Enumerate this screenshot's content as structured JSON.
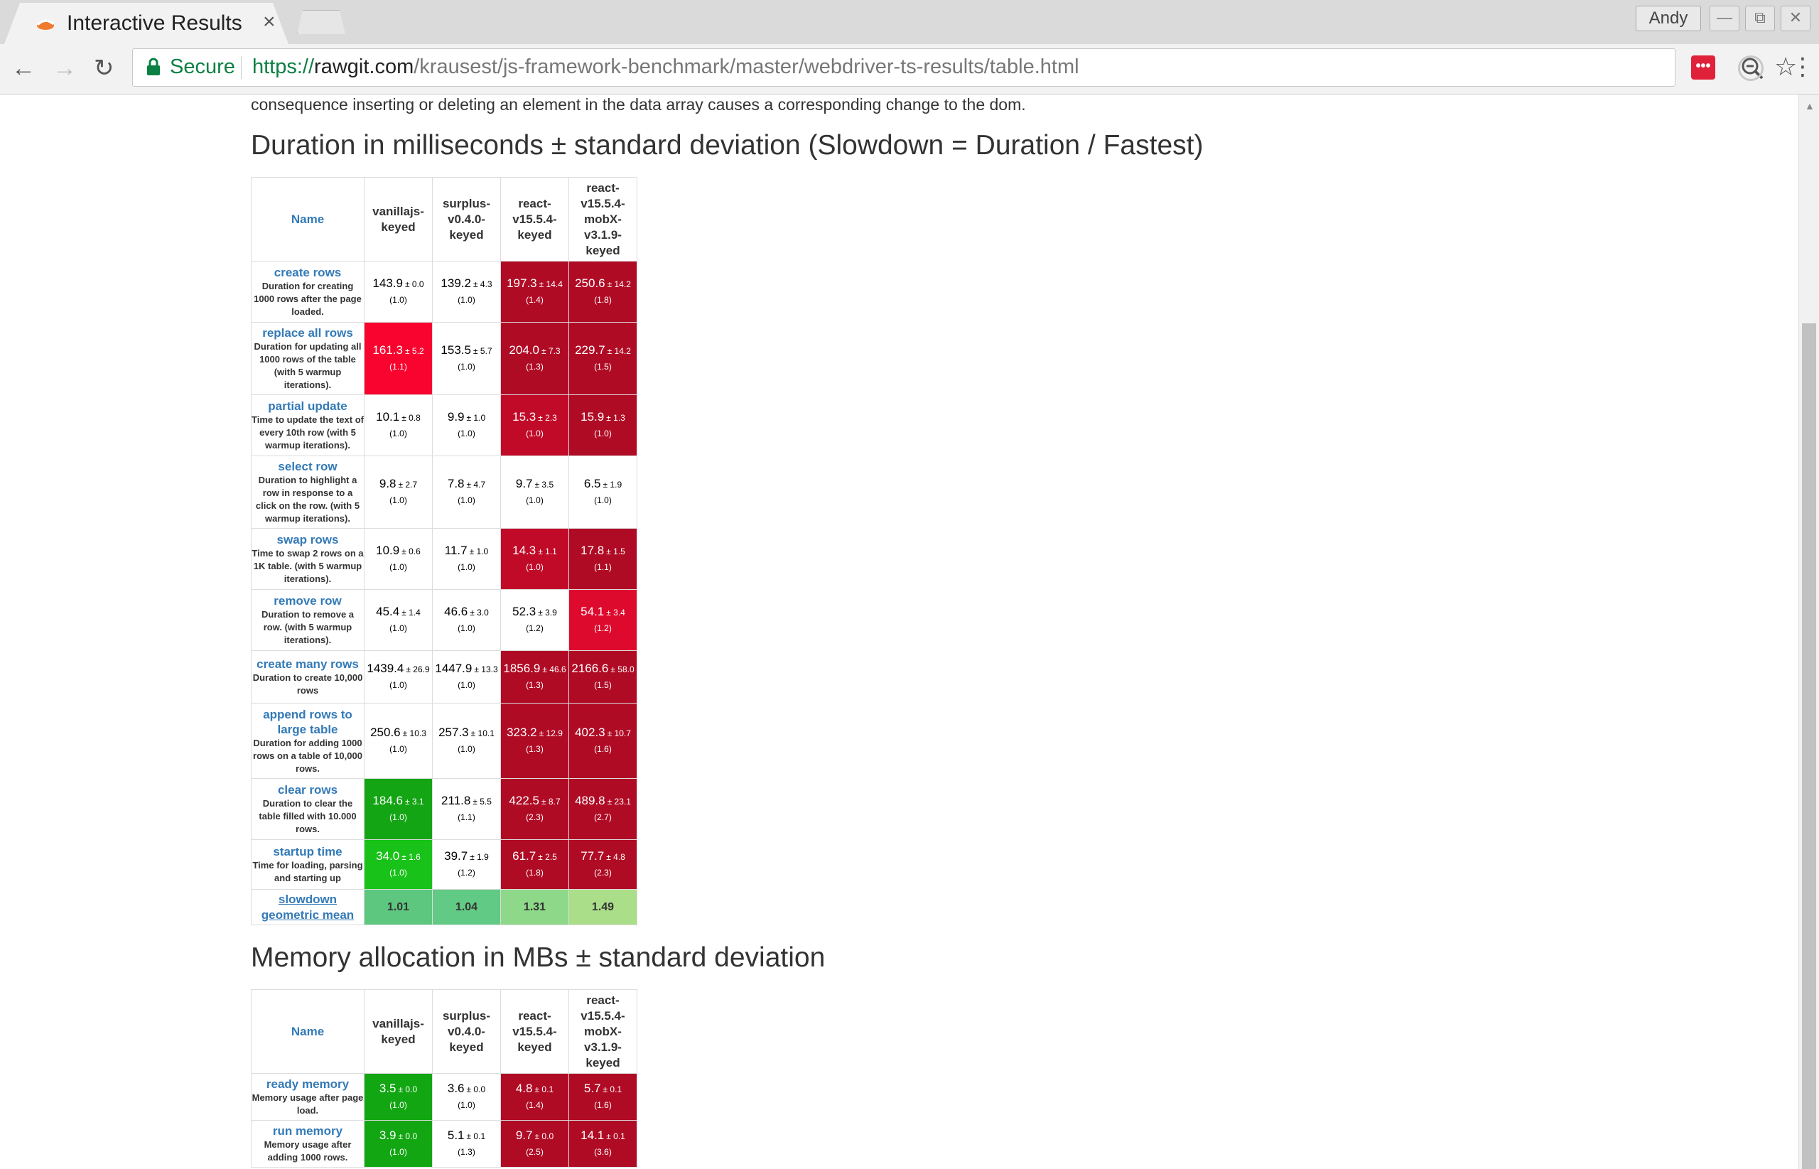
{
  "browser": {
    "tab_title": "Interactive Results",
    "tab_close": "×",
    "profile_name": "Andy",
    "secure_label": "Secure",
    "url_protocol": "https://",
    "url_host": "rawgit.com",
    "url_path": "/krausest/js-framework-benchmark/master/webdriver-ts-results/table.html",
    "icons": [
      "back-icon",
      "forward-icon",
      "reload-icon",
      "lock-icon",
      "zoom-icon",
      "star-icon",
      "extension-icon",
      "menu-icon"
    ]
  },
  "page": {
    "intro_text": "consequence inserting or deleting an element in the data array causes a corresponding change to the dom.",
    "duration_title": "Duration in milliseconds ± standard deviation (Slowdown = Duration / Fastest)",
    "memory_title": "Memory allocation in MBs ± standard deviation"
  },
  "frameworks": [
    "vanillajs-keyed",
    "surplus-v0.4.0-keyed",
    "react-v15.5.4-keyed",
    "react-v15.5.4-mobX-v3.1.9-keyed"
  ],
  "name_header": "Name",
  "duration_rows": [
    {
      "name": "create rows",
      "desc": "Duration for creating 1000 rows after the page loaded.",
      "cells": [
        {
          "mean": "143.9",
          "dev": "± 0.0",
          "factor": "(1.0)",
          "bg": "#ffffff",
          "fg": "#000000"
        },
        {
          "mean": "139.2",
          "dev": "± 4.3",
          "factor": "(1.0)",
          "bg": "#ffffff",
          "fg": "#000000"
        },
        {
          "mean": "197.3",
          "dev": "± 14.4",
          "factor": "(1.4)",
          "bg": "#b00b25",
          "fg": "#ffffff"
        },
        {
          "mean": "250.6",
          "dev": "± 14.2",
          "factor": "(1.8)",
          "bg": "#b00b25",
          "fg": "#ffffff"
        }
      ]
    },
    {
      "name": "replace all rows",
      "desc": "Duration for updating all 1000 rows of the table (with 5 warmup iterations).",
      "cells": [
        {
          "mean": "161.3",
          "dev": "± 5.2",
          "factor": "(1.1)",
          "bg": "#f8042e",
          "fg": "#ffffff"
        },
        {
          "mean": "153.5",
          "dev": "± 5.7",
          "factor": "(1.0)",
          "bg": "#ffffff",
          "fg": "#000000"
        },
        {
          "mean": "204.0",
          "dev": "± 7.3",
          "factor": "(1.3)",
          "bg": "#b00b25",
          "fg": "#ffffff"
        },
        {
          "mean": "229.7",
          "dev": "± 14.2",
          "factor": "(1.5)",
          "bg": "#b00b25",
          "fg": "#ffffff"
        }
      ]
    },
    {
      "name": "partial update",
      "desc": "Time to update the text of every 10th row (with 5 warmup iterations).",
      "cells": [
        {
          "mean": "10.1",
          "dev": "± 0.8",
          "factor": "(1.0)",
          "bg": "#ffffff",
          "fg": "#000000"
        },
        {
          "mean": "9.9",
          "dev": "± 1.0",
          "factor": "(1.0)",
          "bg": "#ffffff",
          "fg": "#000000"
        },
        {
          "mean": "15.3",
          "dev": "± 2.3",
          "factor": "(1.0)",
          "bg": "#c00a28",
          "fg": "#ffffff"
        },
        {
          "mean": "15.9",
          "dev": "± 1.3",
          "factor": "(1.0)",
          "bg": "#b00b25",
          "fg": "#ffffff"
        }
      ]
    },
    {
      "name": "select row",
      "desc": "Duration to highlight a row in response to a click on the row. (with 5 warmup iterations).",
      "cells": [
        {
          "mean": "9.8",
          "dev": "± 2.7",
          "factor": "(1.0)",
          "bg": "#ffffff",
          "fg": "#000000"
        },
        {
          "mean": "7.8",
          "dev": "± 4.7",
          "factor": "(1.0)",
          "bg": "#ffffff",
          "fg": "#000000"
        },
        {
          "mean": "9.7",
          "dev": "± 3.5",
          "factor": "(1.0)",
          "bg": "#ffffff",
          "fg": "#000000"
        },
        {
          "mean": "6.5",
          "dev": "± 1.9",
          "factor": "(1.0)",
          "bg": "#ffffff",
          "fg": "#000000"
        }
      ]
    },
    {
      "name": "swap rows",
      "desc": "Time to swap 2 rows on a 1K table. (with 5 warmup iterations).",
      "cells": [
        {
          "mean": "10.9",
          "dev": "± 0.6",
          "factor": "(1.0)",
          "bg": "#ffffff",
          "fg": "#000000"
        },
        {
          "mean": "11.7",
          "dev": "± 1.0",
          "factor": "(1.0)",
          "bg": "#ffffff",
          "fg": "#000000"
        },
        {
          "mean": "14.3",
          "dev": "± 1.1",
          "factor": "(1.0)",
          "bg": "#c00a28",
          "fg": "#ffffff"
        },
        {
          "mean": "17.8",
          "dev": "± 1.5",
          "factor": "(1.1)",
          "bg": "#b00b25",
          "fg": "#ffffff"
        }
      ]
    },
    {
      "name": "remove row",
      "desc": "Duration to remove a row. (with 5 warmup iterations).",
      "cells": [
        {
          "mean": "45.4",
          "dev": "± 1.4",
          "factor": "(1.0)",
          "bg": "#ffffff",
          "fg": "#000000"
        },
        {
          "mean": "46.6",
          "dev": "± 3.0",
          "factor": "(1.0)",
          "bg": "#ffffff",
          "fg": "#000000"
        },
        {
          "mean": "52.3",
          "dev": "± 3.9",
          "factor": "(1.2)",
          "bg": "#ffffff",
          "fg": "#000000"
        },
        {
          "mean": "54.1",
          "dev": "± 3.4",
          "factor": "(1.2)",
          "bg": "#de0a2e",
          "fg": "#ffffff"
        }
      ]
    },
    {
      "name": "create many rows",
      "desc": "Duration to create 10,000 rows",
      "cells": [
        {
          "mean": "1439.4",
          "dev": "± 26.9",
          "factor": "(1.0)",
          "bg": "#ffffff",
          "fg": "#000000"
        },
        {
          "mean": "1447.9",
          "dev": "± 13.3",
          "factor": "(1.0)",
          "bg": "#ffffff",
          "fg": "#000000"
        },
        {
          "mean": "1856.9",
          "dev": "± 46.6",
          "factor": "(1.3)",
          "bg": "#b00b25",
          "fg": "#ffffff"
        },
        {
          "mean": "2166.6",
          "dev": "± 58.0",
          "factor": "(1.5)",
          "bg": "#b00b25",
          "fg": "#ffffff"
        }
      ]
    },
    {
      "name": "append rows to large table",
      "desc": "Duration for adding 1000 rows on a table of 10,000 rows.",
      "cells": [
        {
          "mean": "250.6",
          "dev": "± 10.3",
          "factor": "(1.0)",
          "bg": "#ffffff",
          "fg": "#000000"
        },
        {
          "mean": "257.3",
          "dev": "± 10.1",
          "factor": "(1.0)",
          "bg": "#ffffff",
          "fg": "#000000"
        },
        {
          "mean": "323.2",
          "dev": "± 12.9",
          "factor": "(1.3)",
          "bg": "#b00b25",
          "fg": "#ffffff"
        },
        {
          "mean": "402.3",
          "dev": "± 10.7",
          "factor": "(1.6)",
          "bg": "#b00b25",
          "fg": "#ffffff"
        }
      ]
    },
    {
      "name": "clear rows",
      "desc": "Duration to clear the table filled with 10.000 rows.",
      "cells": [
        {
          "mean": "184.6",
          "dev": "± 3.1",
          "factor": "(1.0)",
          "bg": "#14a514",
          "fg": "#ffffff"
        },
        {
          "mean": "211.8",
          "dev": "± 5.5",
          "factor": "(1.1)",
          "bg": "#ffffff",
          "fg": "#000000"
        },
        {
          "mean": "422.5",
          "dev": "± 8.7",
          "factor": "(2.3)",
          "bg": "#b00b25",
          "fg": "#ffffff"
        },
        {
          "mean": "489.8",
          "dev": "± 23.1",
          "factor": "(2.7)",
          "bg": "#b00b25",
          "fg": "#ffffff"
        }
      ]
    },
    {
      "name": "startup time",
      "desc": "Time for loading, parsing and starting up",
      "cells": [
        {
          "mean": "34.0",
          "dev": "± 1.6",
          "factor": "(1.0)",
          "bg": "#19c219",
          "fg": "#ffffff"
        },
        {
          "mean": "39.7",
          "dev": "± 1.9",
          "factor": "(1.2)",
          "bg": "#ffffff",
          "fg": "#000000"
        },
        {
          "mean": "61.7",
          "dev": "± 2.5",
          "factor": "(1.8)",
          "bg": "#b00b25",
          "fg": "#ffffff"
        },
        {
          "mean": "77.7",
          "dev": "± 4.8",
          "factor": "(2.3)",
          "bg": "#b00b25",
          "fg": "#ffffff"
        }
      ]
    }
  ],
  "geometric_mean": {
    "label_line1": "slowdown",
    "label_line2": "geometric mean",
    "values": [
      {
        "value": "1.01",
        "bg": "#5dc77f"
      },
      {
        "value": "1.04",
        "bg": "#61ca84"
      },
      {
        "value": "1.31",
        "bg": "#8ed989"
      },
      {
        "value": "1.49",
        "bg": "#abde89"
      }
    ]
  },
  "memory_rows": [
    {
      "name": "ready memory",
      "desc": "Memory usage after page load.",
      "cells": [
        {
          "mean": "3.5",
          "dev": "± 0.0",
          "factor": "(1.0)",
          "bg": "#12a612",
          "fg": "#ffffff"
        },
        {
          "mean": "3.6",
          "dev": "± 0.0",
          "factor": "(1.0)",
          "bg": "#ffffff",
          "fg": "#000000"
        },
        {
          "mean": "4.8",
          "dev": "± 0.1",
          "factor": "(1.4)",
          "bg": "#b00b25",
          "fg": "#ffffff"
        },
        {
          "mean": "5.7",
          "dev": "± 0.1",
          "factor": "(1.6)",
          "bg": "#b00b25",
          "fg": "#ffffff"
        }
      ]
    },
    {
      "name": "run memory",
      "desc": "Memory usage after adding 1000 rows.",
      "cells": [
        {
          "mean": "3.9",
          "dev": "± 0.0",
          "factor": "(1.0)",
          "bg": "#12a612",
          "fg": "#ffffff"
        },
        {
          "mean": "5.1",
          "dev": "± 0.1",
          "factor": "(1.3)",
          "bg": "#ffffff",
          "fg": "#000000"
        },
        {
          "mean": "9.7",
          "dev": "± 0.0",
          "factor": "(2.5)",
          "bg": "#b00b25",
          "fg": "#ffffff"
        },
        {
          "mean": "14.1",
          "dev": "± 0.1",
          "factor": "(3.6)",
          "bg": "#b00b25",
          "fg": "#ffffff"
        }
      ]
    }
  ]
}
